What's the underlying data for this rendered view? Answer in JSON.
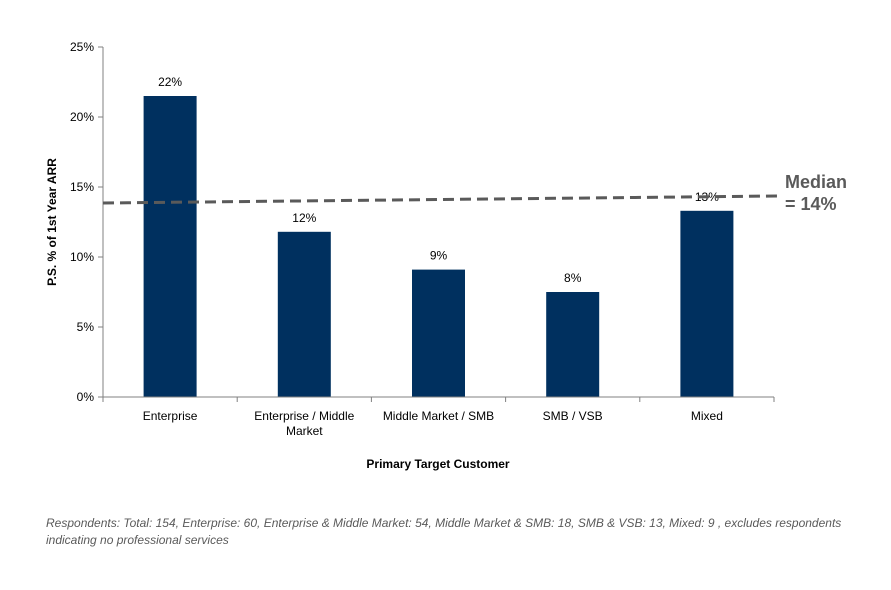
{
  "chart_data": {
    "type": "bar",
    "categories": [
      [
        "Enterprise"
      ],
      [
        "Enterprise / Middle",
        "Market"
      ],
      [
        "Middle Market / SMB"
      ],
      [
        "SMB / VSB"
      ],
      [
        "Mixed"
      ]
    ],
    "values": [
      21.5,
      11.8,
      9.1,
      7.5,
      13.3
    ],
    "data_labels": [
      "22%",
      "12%",
      "9%",
      "8%",
      "13%"
    ],
    "xlabel": "Primary Target Customer",
    "ylabel": "P.S. % of 1st Year ARR",
    "ylim": [
      0,
      25
    ],
    "yticks": [
      0,
      5,
      10,
      15,
      20,
      25
    ],
    "ytick_labels": [
      "0%",
      "5%",
      "10%",
      "15%",
      "20%",
      "25%"
    ],
    "bar_color": "#00305f",
    "grid": false,
    "median": {
      "value": 14,
      "label_lines": [
        "Median",
        "= 14%"
      ],
      "color": "#5a5a5a",
      "style": "dashed"
    }
  },
  "footnote": "Respondents: Total: 154, Enterprise: 60, Enterprise & Middle Market: 54, Middle Market & SMB: 18, SMB & VSB: 13, Mixed: 9 , excludes respondents indicating no professional services"
}
